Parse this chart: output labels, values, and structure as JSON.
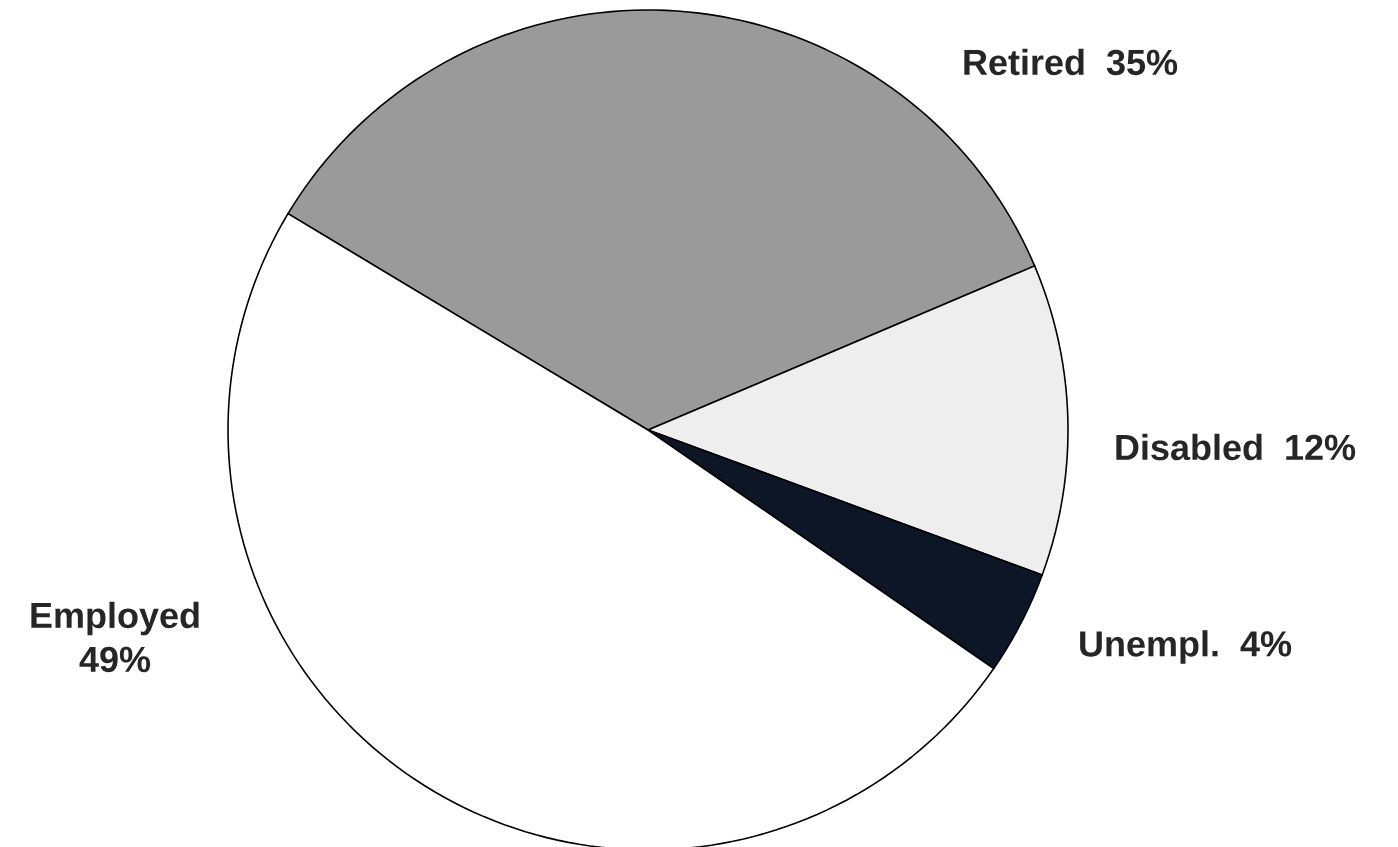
{
  "chart_data": {
    "type": "pie",
    "categories": [
      "Retired",
      "Disabled",
      "Unempl.",
      "Employed"
    ],
    "values": [
      35,
      12,
      4,
      49
    ],
    "value_labels": [
      "35%",
      "12%",
      "4%",
      "49%"
    ],
    "colors": [
      "#9a9a9a",
      "#eeeeee",
      "#0d1626",
      "#ffffff"
    ]
  }
}
